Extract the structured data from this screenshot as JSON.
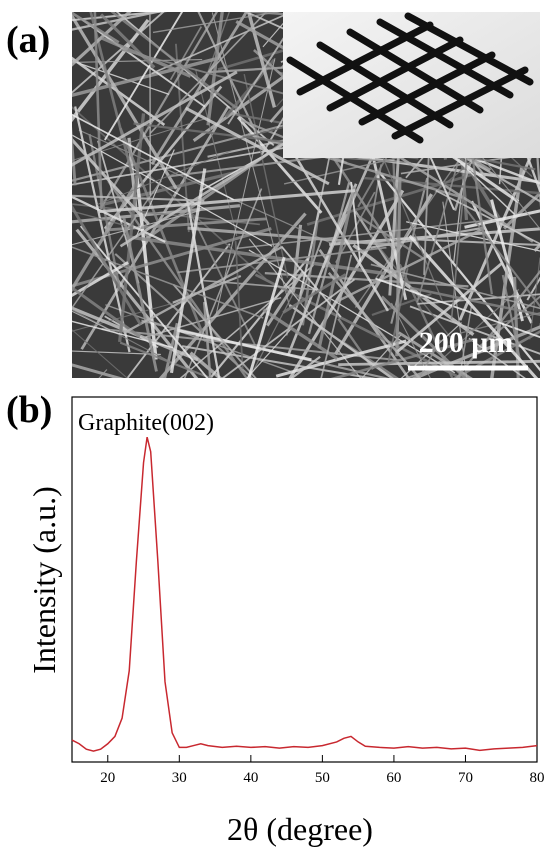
{
  "panel_a": {
    "label": "(a)",
    "scale_bar": "200 μm"
  },
  "chart_data": {
    "type": "line",
    "panel_label": "(b)",
    "xlabel": "2θ (degree)",
    "ylabel": "Intensity (a.u.)",
    "annotation": "Graphite(002)",
    "x": [
      15,
      16,
      17,
      18,
      19,
      20,
      21,
      22,
      23,
      24,
      25,
      25.5,
      26,
      27,
      28,
      29,
      30,
      31,
      32,
      33,
      34,
      36,
      38,
      40,
      42,
      44,
      46,
      48,
      50,
      52,
      53,
      54,
      55,
      56,
      58,
      60,
      62,
      64,
      66,
      68,
      70,
      72,
      74,
      76,
      78,
      80
    ],
    "series": [
      {
        "color": "#c8282f",
        "values": [
          6,
          5,
          3.5,
          3,
          3.5,
          5,
          7,
          12,
          25,
          55,
          82,
          89,
          85,
          55,
          22,
          8,
          4,
          4,
          4.5,
          5,
          4.5,
          4,
          4.3,
          4,
          4.2,
          3.8,
          4.2,
          4,
          4.5,
          5.5,
          6.5,
          7,
          5.5,
          4.3,
          4,
          3.8,
          4.2,
          3.8,
          4,
          3.6,
          3.8,
          3.2,
          3.6,
          3.8,
          4,
          4.5
        ]
      }
    ],
    "xlim": [
      15,
      80
    ],
    "ylim": [
      0,
      100
    ],
    "xticks": [
      20,
      30,
      40,
      50,
      60,
      70,
      80
    ]
  }
}
